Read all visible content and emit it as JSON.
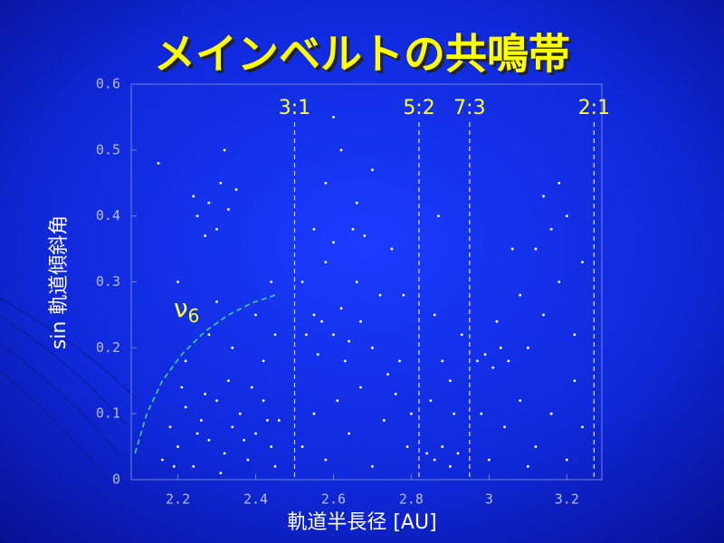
{
  "chart_data": {
    "type": "scatter",
    "title": "メインベルトの共鳴帯",
    "x_label": "軌道半長径 [AU]",
    "y_label": "sin 軌道傾斜角",
    "color": "#ffffff",
    "xlim": [
      2.08,
      3.29
    ],
    "ylim": [
      0,
      0.6
    ],
    "xticks": [
      2.2,
      2.4,
      2.6,
      2.8,
      3,
      3.2
    ],
    "yticks": [
      0,
      0.1,
      0.2,
      0.3,
      0.4,
      0.5,
      0.6
    ],
    "x": [
      2.16,
      2.18,
      2.2,
      2.22,
      2.24,
      2.26,
      2.28,
      2.3,
      2.32,
      2.34,
      2.36,
      2.38,
      2.4,
      2.42,
      2.44,
      2.46,
      2.21,
      2.27,
      2.33,
      2.39,
      2.45,
      2.19,
      2.25,
      2.31,
      2.37,
      2.43,
      2.22,
      2.28,
      2.34,
      2.4,
      2.45,
      2.3,
      2.42,
      2.2,
      2.15,
      2.32,
      2.44,
      2.25,
      2.28,
      2.3,
      2.33,
      2.27,
      2.35,
      2.31,
      2.24,
      2.53,
      2.55,
      2.57,
      2.6,
      2.62,
      2.64,
      2.67,
      2.7,
      2.56,
      2.63,
      2.52,
      2.55,
      2.58,
      2.61,
      2.64,
      2.67,
      2.7,
      2.73,
      2.76,
      2.79,
      2.74,
      2.77,
      2.8,
      2.72,
      2.66,
      2.58,
      2.55,
      2.6,
      2.65,
      2.68,
      2.58,
      2.62,
      2.66,
      2.7,
      2.6,
      2.75,
      2.78,
      2.52,
      2.84,
      2.86,
      2.88,
      2.9,
      2.92,
      2.85,
      2.88,
      2.91,
      2.93,
      2.86,
      2.9,
      2.87,
      2.97,
      2.99,
      3.01,
      3.03,
      3.05,
      3.0,
      3.04,
      3.08,
      3.12,
      3.16,
      3.2,
      3.24,
      3.1,
      3.14,
      3.18,
      3.22,
      3.12,
      3.16,
      3.2,
      3.18,
      3.08,
      3.02,
      3.22,
      3.06,
      3.14,
      3.24,
      3.1,
      2.98
    ],
    "values": [
      0.03,
      0.08,
      0.05,
      0.11,
      0.02,
      0.09,
      0.06,
      0.12,
      0.04,
      0.08,
      0.1,
      0.03,
      0.07,
      0.12,
      0.05,
      0.09,
      0.14,
      0.13,
      0.15,
      0.14,
      0.02,
      0.02,
      0.07,
      0.01,
      0.06,
      0.09,
      0.18,
      0.22,
      0.2,
      0.25,
      0.22,
      0.27,
      0.18,
      0.3,
      0.48,
      0.5,
      0.3,
      0.4,
      0.42,
      0.38,
      0.41,
      0.37,
      0.44,
      0.45,
      0.43,
      0.22,
      0.25,
      0.24,
      0.22,
      0.26,
      0.21,
      0.24,
      0.2,
      0.19,
      0.18,
      0.05,
      0.1,
      0.03,
      0.12,
      0.07,
      0.14,
      0.02,
      0.09,
      0.13,
      0.05,
      0.16,
      0.18,
      0.1,
      0.28,
      0.3,
      0.33,
      0.38,
      0.36,
      0.38,
      0.37,
      0.45,
      0.5,
      0.42,
      0.47,
      0.55,
      0.35,
      0.28,
      0.3,
      0.04,
      0.03,
      0.05,
      0.02,
      0.04,
      0.12,
      0.18,
      0.1,
      0.22,
      0.25,
      0.15,
      0.4,
      0.18,
      0.19,
      0.17,
      0.2,
      0.18,
      0.03,
      0.08,
      0.12,
      0.05,
      0.1,
      0.03,
      0.08,
      0.2,
      0.25,
      0.3,
      0.22,
      0.35,
      0.38,
      0.4,
      0.45,
      0.28,
      0.24,
      0.15,
      0.35,
      0.43,
      0.33,
      0.02,
      0.1
    ],
    "resonances": [
      {
        "label": "3:1",
        "value": 2.5
      },
      {
        "label": "5:2",
        "value": 2.82
      },
      {
        "label": "7:3",
        "value": 2.95
      },
      {
        "label": "2:1",
        "value": 3.27
      }
    ],
    "resonance_color": "#d8e4ff",
    "nu6": {
      "symbol": "ν",
      "subscript": "6",
      "color": "#40d080",
      "x": [
        2.09,
        2.12,
        2.16,
        2.21,
        2.27,
        2.33,
        2.39,
        2.45
      ],
      "values": [
        0.04,
        0.1,
        0.15,
        0.19,
        0.225,
        0.25,
        0.268,
        0.28
      ]
    }
  }
}
